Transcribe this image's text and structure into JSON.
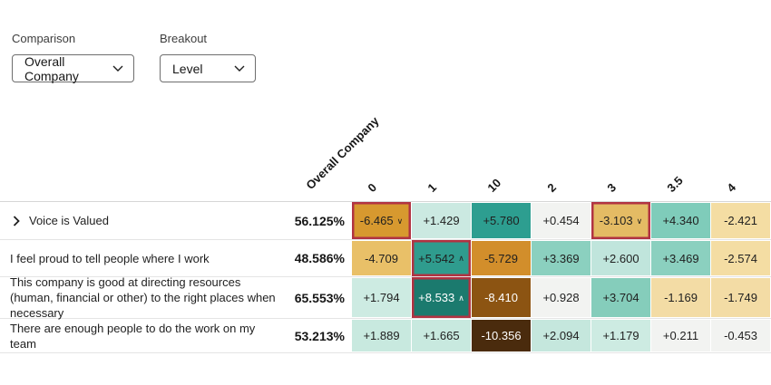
{
  "controls": {
    "comparison": {
      "label": "Comparison",
      "value": "Overall Company"
    },
    "breakout": {
      "label": "Breakout",
      "value": "Level"
    }
  },
  "heatmap": {
    "score_header": "Overall Company",
    "columns": [
      "0",
      "1",
      "10",
      "2",
      "3",
      "3.5",
      "4"
    ],
    "flag_border_color": "#b13342",
    "rows": [
      {
        "label": "Voice is Valued",
        "expandable": true,
        "score": "56.125%",
        "cells": [
          {
            "value": "-6.465",
            "arrow": "down",
            "flagged": true,
            "bg": "#d7992f",
            "fg": "#1f1f1f"
          },
          {
            "value": "+1.429",
            "arrow": null,
            "flagged": false,
            "bg": "#cbe9e1",
            "fg": "#1f1f1f"
          },
          {
            "value": "+5.780",
            "arrow": null,
            "flagged": false,
            "bg": "#2d9e90",
            "fg": "#1f1f1f"
          },
          {
            "value": "+0.454",
            "arrow": null,
            "flagged": false,
            "bg": "#f2f3f1",
            "fg": "#1f1f1f"
          },
          {
            "value": "-3.103",
            "arrow": "down",
            "flagged": true,
            "bg": "#e4bb64",
            "fg": "#1f1f1f"
          },
          {
            "value": "+4.340",
            "arrow": null,
            "flagged": false,
            "bg": "#7fccba",
            "fg": "#1f1f1f"
          },
          {
            "value": "-2.421",
            "arrow": null,
            "flagged": false,
            "bg": "#f4dda3",
            "fg": "#1f1f1f"
          }
        ]
      },
      {
        "label": "I feel proud to tell people where I work",
        "expandable": false,
        "score": "48.586%",
        "cells": [
          {
            "value": "-4.709",
            "arrow": null,
            "flagged": false,
            "bg": "#e9c068",
            "fg": "#1f1f1f"
          },
          {
            "value": "+5.542",
            "arrow": "up",
            "flagged": true,
            "bg": "#2f9c8e",
            "fg": "#1f1f1f"
          },
          {
            "value": "-5.729",
            "arrow": null,
            "flagged": false,
            "bg": "#d28e2b",
            "fg": "#1f1f1f"
          },
          {
            "value": "+3.369",
            "arrow": null,
            "flagged": false,
            "bg": "#8bd0bf",
            "fg": "#1f1f1f"
          },
          {
            "value": "+2.600",
            "arrow": null,
            "flagged": false,
            "bg": "#c0e5dc",
            "fg": "#1f1f1f"
          },
          {
            "value": "+3.469",
            "arrow": null,
            "flagged": false,
            "bg": "#8bd0bf",
            "fg": "#1f1f1f"
          },
          {
            "value": "-2.574",
            "arrow": null,
            "flagged": false,
            "bg": "#f4dda3",
            "fg": "#1f1f1f"
          }
        ]
      },
      {
        "label": "This company is good at directing resources (human, financial or other) to the right places when necessary",
        "expandable": false,
        "score": "65.553%",
        "cells": [
          {
            "value": "+1.794",
            "arrow": null,
            "flagged": false,
            "bg": "#cdebe2",
            "fg": "#1f1f1f"
          },
          {
            "value": "+8.533",
            "arrow": "up",
            "flagged": true,
            "bg": "#1b7a6e",
            "fg": "#ffffff"
          },
          {
            "value": "-8.410",
            "arrow": null,
            "flagged": false,
            "bg": "#8c5412",
            "fg": "#ffffff"
          },
          {
            "value": "+0.928",
            "arrow": null,
            "flagged": false,
            "bg": "#f2f3f1",
            "fg": "#1f1f1f"
          },
          {
            "value": "+3.704",
            "arrow": null,
            "flagged": false,
            "bg": "#85cdbb",
            "fg": "#1f1f1f"
          },
          {
            "value": "-1.169",
            "arrow": null,
            "flagged": false,
            "bg": "#f3dca5",
            "fg": "#1f1f1f"
          },
          {
            "value": "-1.749",
            "arrow": null,
            "flagged": false,
            "bg": "#f3dca5",
            "fg": "#1f1f1f"
          }
        ]
      },
      {
        "label": "There are enough people to do the work on my team",
        "expandable": false,
        "score": "53.213%",
        "cells": [
          {
            "value": "+1.889",
            "arrow": null,
            "flagged": false,
            "bg": "#c8e9df",
            "fg": "#1f1f1f"
          },
          {
            "value": "+1.665",
            "arrow": null,
            "flagged": false,
            "bg": "#c8e9df",
            "fg": "#1f1f1f"
          },
          {
            "value": "-10.356",
            "arrow": null,
            "flagged": false,
            "bg": "#4a2b0d",
            "fg": "#ffffff"
          },
          {
            "value": "+2.094",
            "arrow": null,
            "flagged": false,
            "bg": "#c5e7dd",
            "fg": "#1f1f1f"
          },
          {
            "value": "+1.179",
            "arrow": null,
            "flagged": false,
            "bg": "#cdebe2",
            "fg": "#1f1f1f"
          },
          {
            "value": "+0.211",
            "arrow": null,
            "flagged": false,
            "bg": "#f2f3f1",
            "fg": "#1f1f1f"
          },
          {
            "value": "-0.453",
            "arrow": null,
            "flagged": false,
            "bg": "#f2f3f1",
            "fg": "#1f1f1f"
          }
        ]
      }
    ]
  }
}
